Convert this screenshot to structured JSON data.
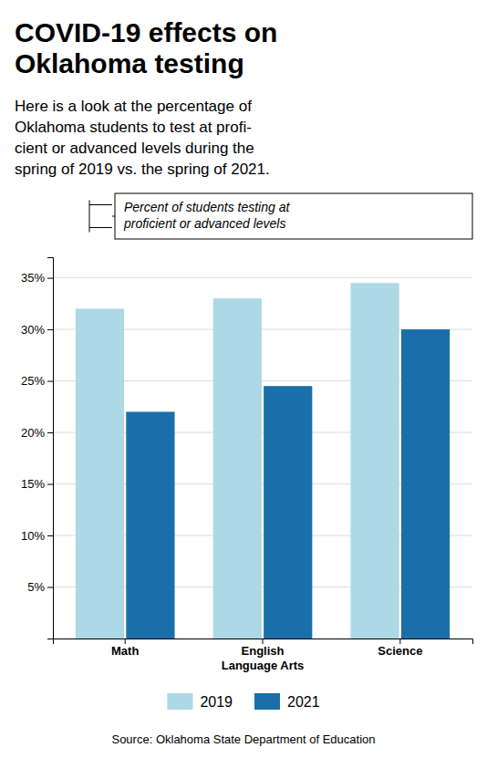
{
  "chart_data": {
    "type": "bar",
    "title": "COVID-19 effects on\nOklahoma testing",
    "subtitle": "Here is a look at the percentage of\nOklahoma students to test at profi-\ncient or advanced levels during the\nspring of 2019 vs. the spring of 2021.",
    "annotation": "Percent of students testing at\nproficient or advanced levels",
    "source": "Source: Oklahoma State Department of Education",
    "categories": [
      "Math",
      "English\nLanguage Arts",
      "Science"
    ],
    "series": [
      {
        "name": "2019",
        "color": "#add8e6",
        "values": [
          32,
          33,
          34.5
        ]
      },
      {
        "name": "2021",
        "color": "#1a6faa",
        "values": [
          22,
          24.5,
          30
        ]
      }
    ],
    "ylim": [
      0,
      37
    ],
    "yticks": [
      {
        "value": 5,
        "label": "5%"
      },
      {
        "value": 10,
        "label": "10%"
      },
      {
        "value": 15,
        "label": "15%"
      },
      {
        "value": 20,
        "label": "20%"
      },
      {
        "value": 25,
        "label": "25%"
      },
      {
        "value": 30,
        "label": "30%"
      },
      {
        "value": 35,
        "label": "35%"
      }
    ],
    "grid": true,
    "legend": "bottom"
  }
}
